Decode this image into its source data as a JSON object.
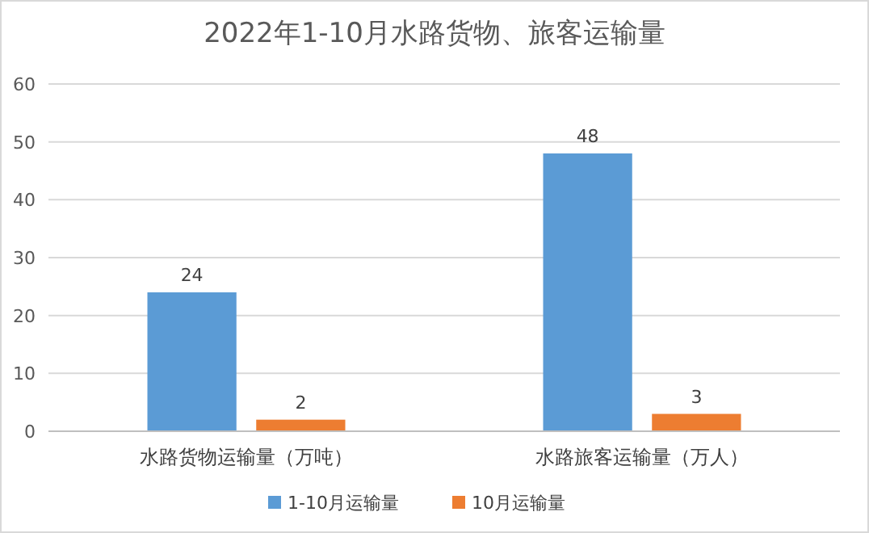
{
  "chart_data": {
    "type": "bar",
    "title": "2022年1-10月水路货物、旅客运输量",
    "categories": [
      "水路货物运输量（万吨）",
      "水路旅客运输量（万人）"
    ],
    "series": [
      {
        "name": "1-10月运输量",
        "color": "#5b9bd5",
        "values": [
          24,
          48
        ]
      },
      {
        "name": "10月运输量",
        "color": "#ed7d31",
        "values": [
          2,
          3
        ]
      }
    ],
    "ylim": [
      0,
      60
    ],
    "yticks": [
      0,
      10,
      20,
      30,
      40,
      50,
      60
    ],
    "grid": "y",
    "data_labels": true,
    "legend": "bottom"
  }
}
